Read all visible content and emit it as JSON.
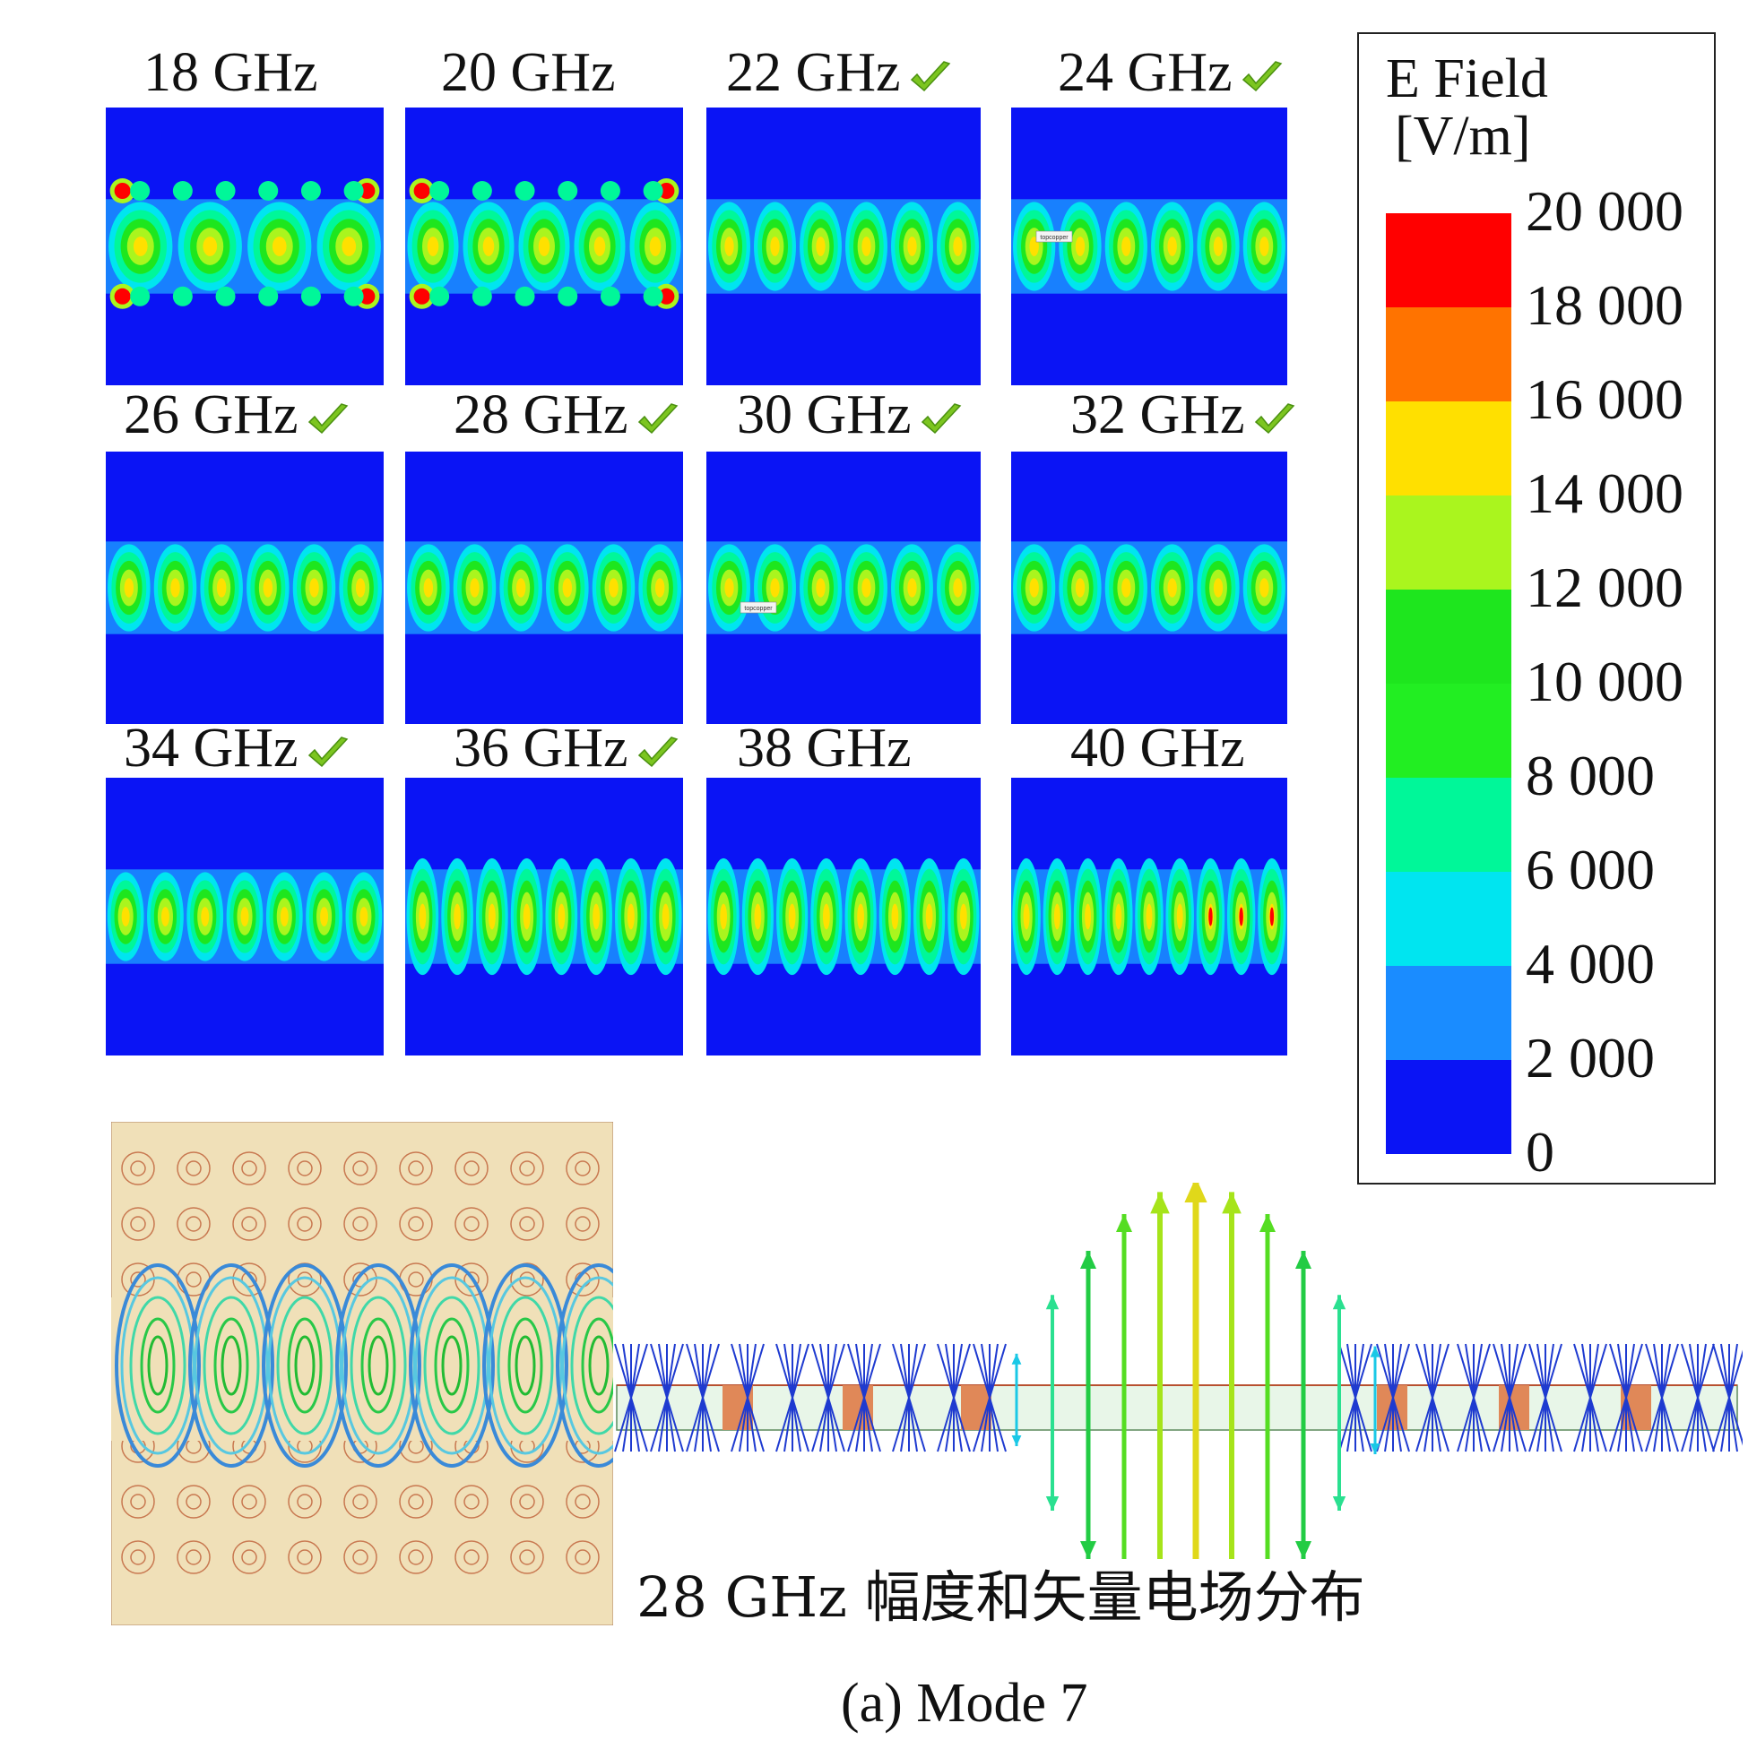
{
  "panels": [
    {
      "label": "18 GHz",
      "checked": false
    },
    {
      "label": "20 GHz",
      "checked": false
    },
    {
      "label": "22 GHz",
      "checked": true
    },
    {
      "label": "24 GHz",
      "checked": true
    },
    {
      "label": "26 GHz",
      "checked": true
    },
    {
      "label": "28 GHz",
      "checked": true
    },
    {
      "label": "30 GHz",
      "checked": true
    },
    {
      "label": "32 GHz",
      "checked": true
    },
    {
      "label": "34 GHz",
      "checked": true
    },
    {
      "label": "36 GHz",
      "checked": true
    },
    {
      "label": "38 GHz",
      "checked": false
    },
    {
      "label": "40 GHz",
      "checked": false
    }
  ],
  "panel_tags": [
    "topcopper",
    "topcopper"
  ],
  "legend": {
    "title_line1": "E Field",
    "title_line2": "[V/m]",
    "ticks": [
      "20 000",
      "18 000",
      "16 000",
      "14 000",
      "12 000",
      "10 000",
      "8 000",
      "6 000",
      "4 000",
      "2 000",
      "0"
    ],
    "colors": [
      "#ff0000",
      "#ff7300",
      "#ffe000",
      "#aaf51e",
      "#1ee61e",
      "#22ee22",
      "#00f799",
      "#00e5f0",
      "#1a8cff",
      "#0a14f5"
    ]
  },
  "caption_main": "28 GHz 幅度和矢量电场分布",
  "caption_sub": "(a) Mode 7",
  "colors": {
    "field_background": "#0a14f5",
    "substrate": "#f0e0b8",
    "via": "#e08050",
    "check": "#7cc520"
  }
}
